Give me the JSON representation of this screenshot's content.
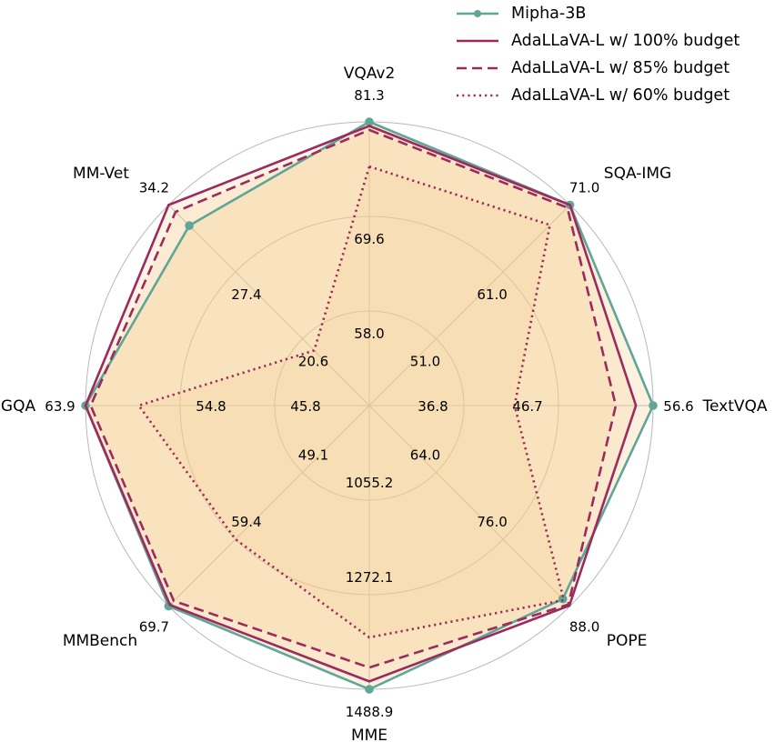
{
  "chart_data": {
    "type": "radar",
    "axes": [
      "VQAv2",
      "SQA-IMG",
      "TextVQA",
      "POPE",
      "MME",
      "MMBench",
      "GQA",
      "MM-Vet"
    ],
    "ticks": [
      [
        "58.0",
        "69.6",
        "81.3"
      ],
      [
        "51.0",
        "61.0",
        "71.0"
      ],
      [
        "36.8",
        "46.7",
        "56.6"
      ],
      [
        "64.0",
        "76.0",
        "88.0"
      ],
      [
        "1055.2",
        "1272.1",
        "1488.9"
      ],
      [
        "49.1",
        "59.4",
        "69.7"
      ],
      [
        "45.8",
        "54.8",
        "63.9"
      ],
      [
        "20.6",
        "27.4",
        "34.2"
      ]
    ],
    "tick_values": [
      [
        58.0,
        69.6,
        81.3
      ],
      [
        51.0,
        61.0,
        71.0
      ],
      [
        36.8,
        46.7,
        56.6
      ],
      [
        64.0,
        76.0,
        88.0
      ],
      [
        1055.2,
        1272.1,
        1488.9
      ],
      [
        49.1,
        59.4,
        69.7
      ],
      [
        45.8,
        54.8,
        63.9
      ],
      [
        20.6,
        27.4,
        34.2
      ]
    ],
    "series": [
      {
        "name": "Mipha-3B",
        "style": "solid-marker",
        "color": "#5fa696",
        "values": [
          81.3,
          71.0,
          56.6,
          86.7,
          1488.9,
          69.7,
          63.9,
          32.1
        ]
      },
      {
        "name": "AdaLLaVA-L w/ 100% budget",
        "style": "solid",
        "color": "#9c2a5c",
        "values": [
          80.8,
          71.0,
          54.8,
          87.9,
          1471.0,
          69.5,
          63.9,
          34.2
        ]
      },
      {
        "name": "AdaLLaVA-L w/ 85% budget",
        "style": "dashed",
        "color": "#9c2a5c",
        "values": [
          80.3,
          70.6,
          52.7,
          87.7,
          1439.0,
          68.9,
          63.4,
          33.5
        ]
      },
      {
        "name": "AdaLLaVA-L w/ 60% budget",
        "style": "dotted",
        "color": "#9c2a5c",
        "values": [
          75.8,
          68.0,
          42.1,
          86.9,
          1370.0,
          59.4,
          58.8,
          19.4
        ]
      }
    ],
    "fill_color": "#f5cd8c",
    "grid": true,
    "legend": "top-right"
  }
}
